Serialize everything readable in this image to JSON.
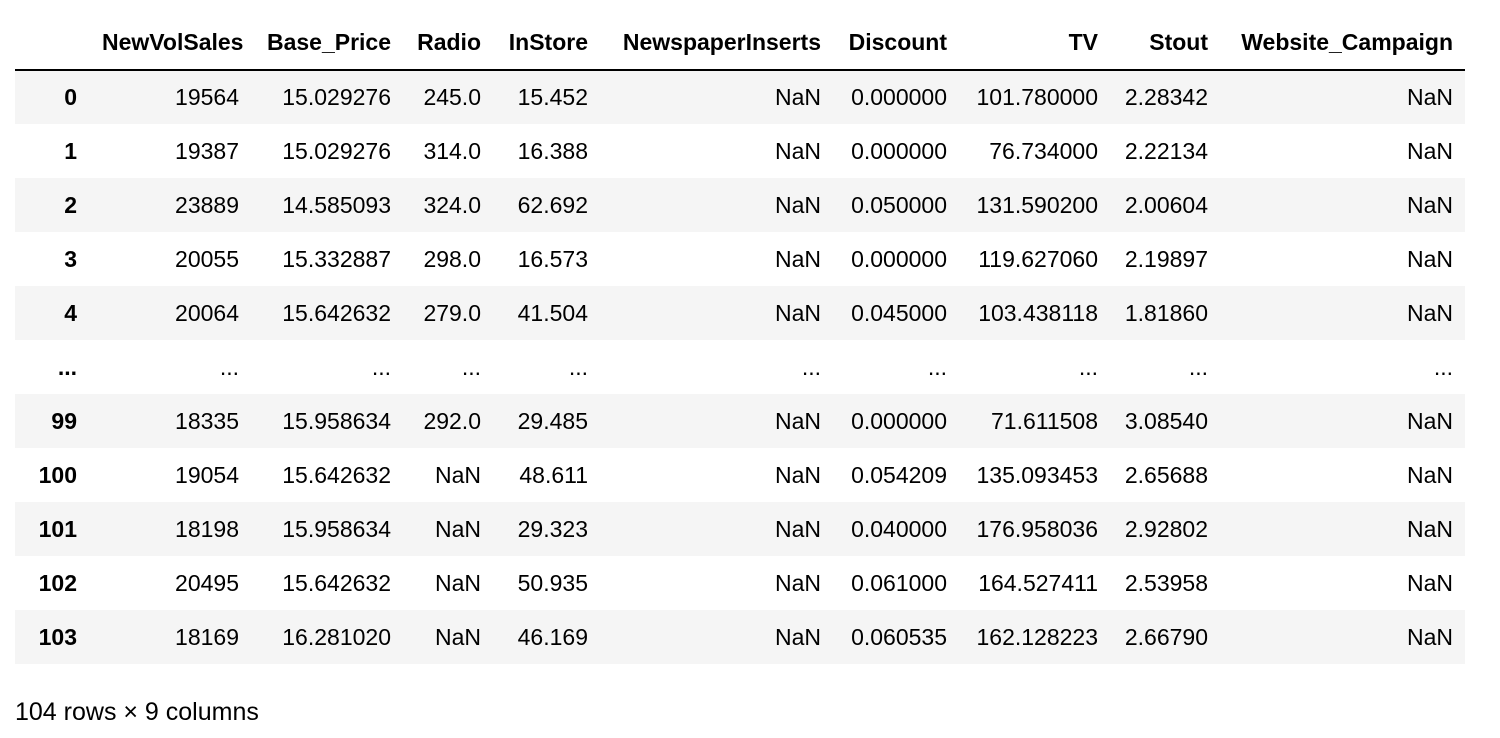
{
  "table": {
    "columns": [
      "NewVolSales",
      "Base_Price",
      "Radio",
      "InStore",
      "NewspaperInserts",
      "Discount",
      "TV",
      "Stout",
      "Website_Campaign"
    ],
    "rows": [
      {
        "index": "0",
        "cells": [
          "19564",
          "15.029276",
          "245.0",
          "15.452",
          "NaN",
          "0.000000",
          "101.780000",
          "2.28342",
          "NaN"
        ]
      },
      {
        "index": "1",
        "cells": [
          "19387",
          "15.029276",
          "314.0",
          "16.388",
          "NaN",
          "0.000000",
          "76.734000",
          "2.22134",
          "NaN"
        ]
      },
      {
        "index": "2",
        "cells": [
          "23889",
          "14.585093",
          "324.0",
          "62.692",
          "NaN",
          "0.050000",
          "131.590200",
          "2.00604",
          "NaN"
        ]
      },
      {
        "index": "3",
        "cells": [
          "20055",
          "15.332887",
          "298.0",
          "16.573",
          "NaN",
          "0.000000",
          "119.627060",
          "2.19897",
          "NaN"
        ]
      },
      {
        "index": "4",
        "cells": [
          "20064",
          "15.642632",
          "279.0",
          "41.504",
          "NaN",
          "0.045000",
          "103.438118",
          "1.81860",
          "NaN"
        ]
      },
      {
        "index": "...",
        "cells": [
          "...",
          "...",
          "...",
          "...",
          "...",
          "...",
          "...",
          "...",
          "..."
        ]
      },
      {
        "index": "99",
        "cells": [
          "18335",
          "15.958634",
          "292.0",
          "29.485",
          "NaN",
          "0.000000",
          "71.611508",
          "3.08540",
          "NaN"
        ]
      },
      {
        "index": "100",
        "cells": [
          "19054",
          "15.642632",
          "NaN",
          "48.611",
          "NaN",
          "0.054209",
          "135.093453",
          "2.65688",
          "NaN"
        ]
      },
      {
        "index": "101",
        "cells": [
          "18198",
          "15.958634",
          "NaN",
          "29.323",
          "NaN",
          "0.040000",
          "176.958036",
          "2.92802",
          "NaN"
        ]
      },
      {
        "index": "102",
        "cells": [
          "20495",
          "15.642632",
          "NaN",
          "50.935",
          "NaN",
          "0.061000",
          "164.527411",
          "2.53958",
          "NaN"
        ]
      },
      {
        "index": "103",
        "cells": [
          "18169",
          "16.281020",
          "NaN",
          "46.169",
          "NaN",
          "0.060535",
          "162.128223",
          "2.66790",
          "NaN"
        ]
      }
    ]
  },
  "footer": {
    "shape_text": "104 rows × 9 columns"
  }
}
